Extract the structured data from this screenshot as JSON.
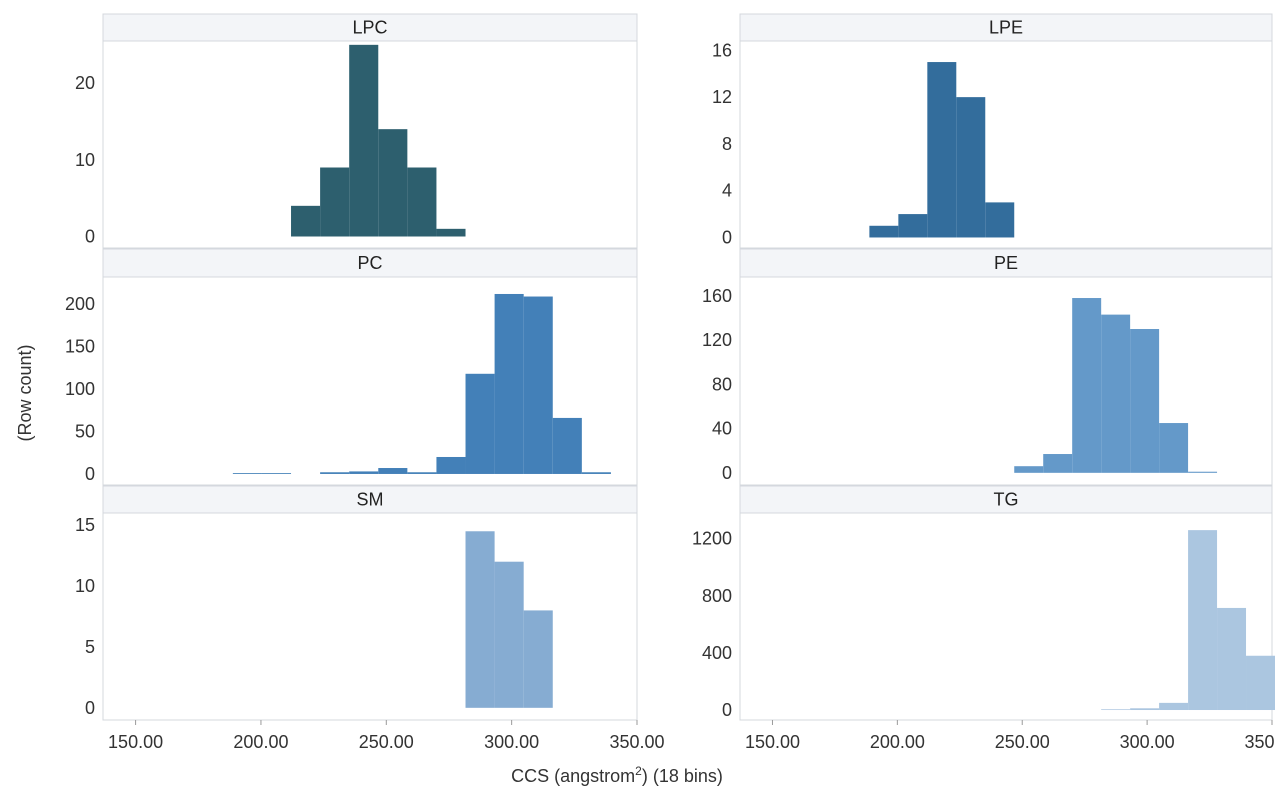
{
  "chart_data": {
    "type": "bar",
    "xlabel_main": "CCS (angstrom",
    "xlabel_sup": "2",
    "xlabel_tail": ") (18 bins)",
    "ylabel": "(Row count)",
    "x_ticks": [
      "150.00",
      "200.00",
      "250.00",
      "300.00",
      "350.00"
    ],
    "x_tick_values": [
      150,
      200,
      250,
      300,
      350
    ],
    "xlim": [
      137,
      350
    ],
    "bin_width": 11.6,
    "panels": [
      {
        "title": "LPC",
        "color": "#2d5f6e",
        "ylim": [
          -1.5,
          25.5
        ],
        "y_ticks": [
          0,
          10,
          20
        ],
        "y_tick_labels": [
          "0",
          "10",
          "20"
        ],
        "bins": [
          {
            "x0": 212.0,
            "value": 4
          },
          {
            "x0": 223.6,
            "value": 9
          },
          {
            "x0": 235.2,
            "value": 25
          },
          {
            "x0": 246.8,
            "value": 14
          },
          {
            "x0": 258.4,
            "value": 9
          },
          {
            "x0": 270.0,
            "value": 1
          }
        ]
      },
      {
        "title": "LPE",
        "color": "#336d9c",
        "ylim": [
          -0.9,
          16.8
        ],
        "y_ticks": [
          0,
          4,
          8,
          12,
          16
        ],
        "y_tick_labels": [
          "0",
          "4",
          "8",
          "12",
          "16"
        ],
        "bins": [
          {
            "x0": 188.8,
            "value": 1
          },
          {
            "x0": 200.4,
            "value": 2
          },
          {
            "x0": 212.0,
            "value": 15
          },
          {
            "x0": 223.6,
            "value": 12
          },
          {
            "x0": 235.2,
            "value": 3
          }
        ]
      },
      {
        "title": "PC",
        "color": "#4380b8",
        "ylim": [
          -13,
          232
        ],
        "y_ticks": [
          0,
          50,
          100,
          150,
          200
        ],
        "y_tick_labels": [
          "0",
          "50",
          "100",
          "150",
          "200"
        ],
        "bins": [
          {
            "x0": 188.8,
            "value": 1
          },
          {
            "x0": 200.4,
            "value": 1
          },
          {
            "x0": 223.6,
            "value": 2
          },
          {
            "x0": 235.2,
            "value": 3
          },
          {
            "x0": 246.8,
            "value": 7
          },
          {
            "x0": 258.4,
            "value": 2
          },
          {
            "x0": 270.0,
            "value": 20
          },
          {
            "x0": 281.6,
            "value": 118
          },
          {
            "x0": 293.2,
            "value": 212
          },
          {
            "x0": 304.8,
            "value": 209
          },
          {
            "x0": 316.4,
            "value": 66
          },
          {
            "x0": 328.0,
            "value": 2
          }
        ]
      },
      {
        "title": "PE",
        "color": "#6499c9",
        "ylim": [
          -11,
          177
        ],
        "y_ticks": [
          0,
          40,
          80,
          120,
          160
        ],
        "y_tick_labels": [
          "0",
          "40",
          "80",
          "120",
          "160"
        ],
        "bins": [
          {
            "x0": 246.8,
            "value": 6
          },
          {
            "x0": 258.4,
            "value": 17
          },
          {
            "x0": 270.0,
            "value": 158
          },
          {
            "x0": 281.6,
            "value": 143
          },
          {
            "x0": 293.2,
            "value": 130
          },
          {
            "x0": 304.8,
            "value": 45
          },
          {
            "x0": 316.4,
            "value": 1
          }
        ]
      },
      {
        "title": "SM",
        "color": "#86acd2",
        "ylim": [
          -1,
          16
        ],
        "y_ticks": [
          0,
          5,
          10,
          15
        ],
        "y_tick_labels": [
          "0",
          "5",
          "10",
          "15"
        ],
        "bins": [
          {
            "x0": 281.6,
            "value": 14.5
          },
          {
            "x0": 293.2,
            "value": 12
          },
          {
            "x0": 304.8,
            "value": 8
          }
        ]
      },
      {
        "title": "TG",
        "color": "#abc6e0",
        "ylim": [
          -70,
          1380
        ],
        "y_ticks": [
          0,
          400,
          800,
          1200
        ],
        "y_tick_labels": [
          "0",
          "400",
          "800",
          "1200"
        ],
        "bins": [
          {
            "x0": 281.6,
            "value": 5
          },
          {
            "x0": 293.2,
            "value": 12
          },
          {
            "x0": 304.8,
            "value": 50
          },
          {
            "x0": 316.4,
            "value": 1260
          },
          {
            "x0": 328.0,
            "value": 715
          },
          {
            "x0": 339.6,
            "value": 380
          }
        ]
      }
    ]
  }
}
